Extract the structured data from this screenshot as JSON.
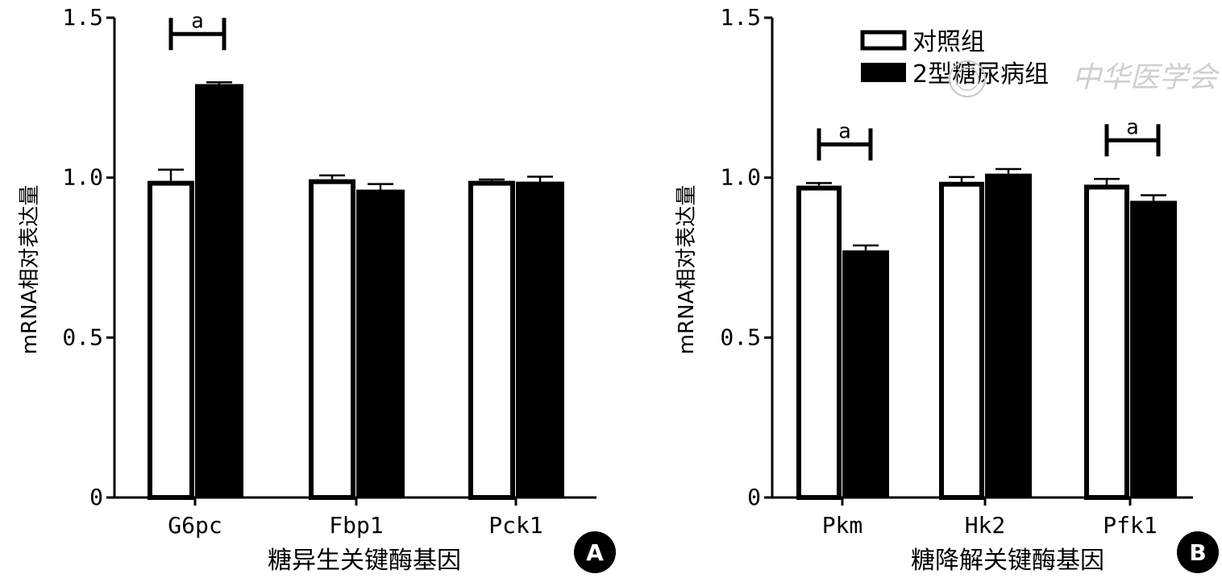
{
  "legend": {
    "control": "对照组",
    "diabetes": "2型糖尿病组"
  },
  "watermark": "中华医学会",
  "chart_data": [
    {
      "type": "bar",
      "panel": "A",
      "xlabel": "糖异生关键酶基因",
      "ylabel": "mRNA相对表达量",
      "ylim": [
        0,
        1.5
      ],
      "yticks": [
        "0",
        "0.5",
        "1.0",
        "1.5"
      ],
      "categories": [
        "G6pc",
        "Fbp1",
        "Pck1"
      ],
      "series": [
        {
          "name": "对照组",
          "values": [
            0.99,
            0.995,
            0.99
          ],
          "errors": [
            0.035,
            0.012,
            0.004
          ],
          "color": "#ffffff"
        },
        {
          "name": "2型糖尿病组",
          "values": [
            1.29,
            0.96,
            0.985
          ],
          "errors": [
            0.008,
            0.02,
            0.018
          ],
          "color": "#000000"
        }
      ],
      "significance": [
        {
          "category": "G6pc",
          "label": "a"
        }
      ]
    },
    {
      "type": "bar",
      "panel": "B",
      "xlabel": "糖降解关键酶基因",
      "ylabel": "mRNA相对表达量",
      "ylim": [
        0,
        1.5
      ],
      "yticks": [
        "0",
        "0.5",
        "1.0",
        "1.5"
      ],
      "categories": [
        "Pkm",
        "Hk2",
        "Pfk1"
      ],
      "series": [
        {
          "name": "对照组",
          "values": [
            0.975,
            0.987,
            0.978
          ],
          "errors": [
            0.008,
            0.015,
            0.018
          ],
          "color": "#ffffff"
        },
        {
          "name": "2型糖尿病组",
          "values": [
            0.77,
            1.01,
            0.925
          ],
          "errors": [
            0.018,
            0.017,
            0.02
          ],
          "color": "#000000"
        }
      ],
      "significance": [
        {
          "category": "Pkm",
          "label": "a"
        },
        {
          "category": "Pfk1",
          "label": "a"
        }
      ]
    }
  ]
}
